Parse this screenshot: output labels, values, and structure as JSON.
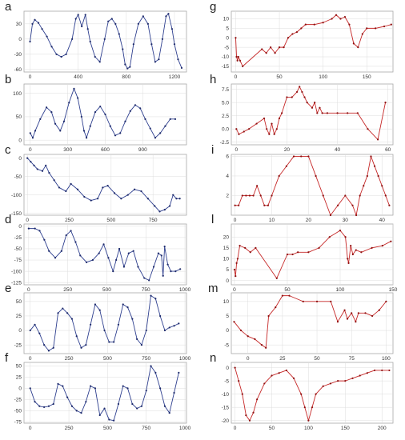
{
  "figure": {
    "background": "#ffffff"
  },
  "styles": {
    "blue_line": "#2e3f8f",
    "blue_marker": "#1d2a6b",
    "red_line": "#c62828",
    "red_marker": "#8e1010",
    "frame": "#a8a8a8",
    "grid": "#dcdcdc"
  },
  "chart_data": [
    {
      "panel": "a",
      "type": "line",
      "color": "blue",
      "grid": true,
      "xlim": [
        -50,
        1300
      ],
      "ylim": [
        -65,
        55
      ],
      "xticks": [
        "0",
        "400",
        "800",
        "1200"
      ],
      "xtick_values": [
        0,
        400,
        800,
        1200
      ],
      "yticks": [
        "30",
        "0",
        "-30",
        "-60"
      ],
      "ytick_values": [
        30,
        0,
        -30,
        -60
      ],
      "x": [
        0,
        20,
        40,
        70,
        100,
        140,
        180,
        220,
        260,
        300,
        350,
        380,
        400,
        430,
        460,
        480,
        500,
        540,
        580,
        620,
        650,
        680,
        710,
        740,
        770,
        790,
        810,
        830,
        860,
        900,
        940,
        980,
        1010,
        1040,
        1070,
        1100,
        1130,
        1150,
        1180,
        1200,
        1230,
        1260
      ],
      "y": [
        -5,
        30,
        38,
        32,
        20,
        5,
        -15,
        -30,
        -35,
        -30,
        0,
        40,
        48,
        25,
        48,
        20,
        -5,
        -35,
        -45,
        0,
        35,
        40,
        30,
        10,
        -20,
        -50,
        -58,
        -55,
        -10,
        30,
        45,
        30,
        -10,
        -45,
        -40,
        0,
        45,
        50,
        20,
        -10,
        -40,
        -57
      ]
    },
    {
      "panel": "b",
      "type": "line",
      "color": "blue",
      "grid": true,
      "xlim": [
        -50,
        1250
      ],
      "ylim": [
        -10,
        120
      ],
      "xticks": [
        "0",
        "300",
        "600",
        "900"
      ],
      "xtick_values": [
        0,
        300,
        600,
        900
      ],
      "yticks": [
        "100",
        "50",
        "0"
      ],
      "ytick_values": [
        100,
        50,
        0
      ],
      "x": [
        0,
        20,
        40,
        80,
        130,
        170,
        200,
        240,
        270,
        310,
        350,
        380,
        410,
        430,
        450,
        480,
        520,
        560,
        600,
        640,
        680,
        720,
        760,
        800,
        840,
        880,
        920,
        960,
        1000,
        1040,
        1080,
        1120,
        1160
      ],
      "y": [
        15,
        5,
        20,
        45,
        70,
        60,
        35,
        20,
        40,
        80,
        110,
        90,
        50,
        20,
        5,
        30,
        60,
        72,
        55,
        30,
        10,
        15,
        40,
        62,
        75,
        68,
        45,
        25,
        5,
        15,
        30,
        45,
        45
      ]
    },
    {
      "panel": "c",
      "type": "line",
      "color": "blue",
      "grid": true,
      "xlim": [
        -20,
        950
      ],
      "ylim": [
        -155,
        10
      ],
      "xticks": [
        "0",
        "250",
        "500",
        "750"
      ],
      "xtick_values": [
        0,
        250,
        500,
        750
      ],
      "yticks": [
        "0",
        "-50",
        "-100",
        "-150"
      ],
      "ytick_values": [
        0,
        -50,
        -100,
        -150
      ],
      "x": [
        0,
        20,
        40,
        60,
        90,
        110,
        130,
        160,
        190,
        230,
        260,
        300,
        340,
        380,
        420,
        450,
        480,
        520,
        560,
        600,
        640,
        680,
        720,
        760,
        790,
        820,
        850,
        870,
        890,
        910
      ],
      "y": [
        0,
        -10,
        -20,
        -30,
        -35,
        -20,
        -40,
        -60,
        -80,
        -90,
        -70,
        -85,
        -105,
        -115,
        -110,
        -80,
        -75,
        -95,
        -110,
        -100,
        -85,
        -90,
        -110,
        -130,
        -145,
        -140,
        -130,
        -100,
        -110,
        -110
      ]
    },
    {
      "panel": "d",
      "type": "line",
      "color": "blue",
      "grid": true,
      "xlim": [
        -30,
        1010
      ],
      "ylim": [
        -130,
        5
      ],
      "xticks": [
        "0",
        "250",
        "500",
        "750",
        "1000"
      ],
      "xtick_values": [
        0,
        250,
        500,
        750,
        1000
      ],
      "yticks": [
        "0",
        "-25",
        "-50",
        "-75",
        "-100",
        "-125"
      ],
      "ytick_values": [
        0,
        -25,
        -50,
        -75,
        -100,
        -125
      ],
      "x": [
        0,
        40,
        70,
        100,
        130,
        170,
        210,
        240,
        270,
        300,
        330,
        370,
        410,
        450,
        480,
        510,
        540,
        560,
        580,
        610,
        640,
        670,
        700,
        740,
        770,
        800,
        830,
        850,
        860,
        870,
        890,
        910,
        940,
        970
      ],
      "y": [
        -5,
        -5,
        -10,
        -30,
        -55,
        -70,
        -55,
        -20,
        -10,
        -35,
        -65,
        -80,
        -75,
        -60,
        -40,
        -70,
        -100,
        -75,
        -50,
        -90,
        -60,
        -55,
        -90,
        -115,
        -120,
        -90,
        -60,
        -65,
        -110,
        -45,
        -85,
        -100,
        -100,
        -95
      ]
    },
    {
      "panel": "e",
      "type": "line",
      "color": "blue",
      "grid": true,
      "xlim": [
        -40,
        1010
      ],
      "ylim": [
        -40,
        65
      ],
      "xticks": [
        "0",
        "250",
        "500",
        "750",
        "1000"
      ],
      "xtick_values": [
        0,
        250,
        500,
        750,
        1000
      ],
      "yticks": [
        "50",
        "25",
        "0",
        "-25"
      ],
      "ytick_values": [
        50,
        25,
        0,
        -25
      ],
      "x": [
        0,
        30,
        60,
        90,
        120,
        150,
        180,
        210,
        240,
        270,
        300,
        330,
        360,
        390,
        420,
        450,
        480,
        510,
        540,
        570,
        600,
        630,
        660,
        690,
        720,
        750,
        780,
        810,
        840,
        870,
        900,
        930,
        960
      ],
      "y": [
        0,
        10,
        -5,
        -25,
        -35,
        -30,
        30,
        38,
        30,
        20,
        -10,
        -30,
        -25,
        10,
        45,
        35,
        0,
        -20,
        -20,
        10,
        45,
        40,
        20,
        -15,
        -25,
        0,
        60,
        55,
        25,
        0,
        5,
        8,
        12
      ]
    },
    {
      "panel": "f",
      "type": "line",
      "color": "blue",
      "grid": true,
      "xlim": [
        -40,
        1010
      ],
      "ylim": [
        -78,
        58
      ],
      "xticks": [
        "0",
        "250",
        "500",
        "750",
        "1000"
      ],
      "xtick_values": [
        0,
        250,
        500,
        750,
        1000
      ],
      "yticks": [
        "50",
        "25",
        "0",
        "-25",
        "-50",
        "-75"
      ],
      "ytick_values": [
        50,
        25,
        0,
        -25,
        -50,
        -75
      ],
      "x": [
        0,
        30,
        60,
        90,
        120,
        150,
        180,
        210,
        240,
        270,
        300,
        330,
        360,
        390,
        420,
        450,
        480,
        510,
        540,
        570,
        600,
        630,
        660,
        690,
        720,
        750,
        780,
        810,
        840,
        870,
        900,
        930,
        960
      ],
      "y": [
        0,
        -30,
        -40,
        -42,
        -40,
        -35,
        10,
        5,
        -20,
        -40,
        -50,
        -55,
        -30,
        5,
        0,
        -60,
        -45,
        -70,
        -72,
        -35,
        5,
        0,
        -35,
        -45,
        -40,
        -5,
        50,
        35,
        0,
        -40,
        -55,
        -10,
        35
      ]
    },
    {
      "panel": "g",
      "type": "line",
      "color": "red",
      "grid": true,
      "xlim": [
        -5,
        180
      ],
      "ylim": [
        -18,
        14
      ],
      "xticks": [
        "0",
        "50",
        "100",
        "150"
      ],
      "xtick_values": [
        0,
        50,
        100,
        150
      ],
      "yticks": [
        "10",
        "5",
        "0",
        "-5",
        "-10",
        "-15"
      ],
      "ytick_values": [
        10,
        5,
        0,
        -5,
        -10,
        -15
      ],
      "x": [
        0,
        1,
        2,
        3,
        5,
        8,
        30,
        35,
        40,
        45,
        50,
        55,
        60,
        65,
        70,
        75,
        80,
        90,
        100,
        110,
        115,
        120,
        125,
        130,
        135,
        140,
        145,
        150,
        160,
        170,
        178
      ],
      "y": [
        0,
        -10,
        -12,
        -10,
        -12,
        -15,
        -6,
        -8,
        -5,
        -8,
        -5,
        -5,
        0,
        2,
        3,
        5,
        7,
        7,
        8,
        10,
        12,
        10,
        11,
        7,
        -3,
        -5,
        2,
        5,
        5,
        6,
        7
      ]
    },
    {
      "panel": "h",
      "type": "line",
      "color": "red",
      "grid": true,
      "xlim": [
        -2,
        62
      ],
      "ylim": [
        -3,
        8.5
      ],
      "xticks": [
        "0",
        "20",
        "40",
        "60"
      ],
      "xtick_values": [
        0,
        20,
        40,
        60
      ],
      "yticks": [
        "7.5",
        "5.0",
        "2.5",
        "0.0",
        "-2.5"
      ],
      "ytick_values": [
        7.5,
        5.0,
        2.5,
        0.0,
        -2.5
      ],
      "x": [
        0,
        1,
        3,
        5,
        8,
        11,
        12,
        13,
        14,
        15,
        16,
        17,
        18,
        20,
        22,
        24,
        25,
        26,
        27,
        28,
        30,
        31,
        32,
        33,
        34,
        36,
        40,
        44,
        48,
        52,
        56,
        59
      ],
      "y": [
        0,
        -1,
        -0.5,
        0,
        1,
        2,
        0,
        -1,
        1,
        -1,
        0,
        2,
        3,
        6,
        6,
        7,
        8,
        7,
        6,
        5,
        4,
        5,
        3,
        4,
        3,
        3,
        3,
        3,
        3,
        0,
        -2,
        5
      ]
    },
    {
      "panel": "i",
      "type": "line",
      "color": "red",
      "grid": true,
      "xlim": [
        -1,
        43
      ],
      "ylim": [
        0,
        6.2
      ],
      "xticks": [
        "0",
        "10",
        "20",
        "30",
        "40"
      ],
      "xtick_values": [
        0,
        10,
        20,
        30,
        40
      ],
      "yticks": [
        "6",
        "4",
        "2"
      ],
      "ytick_values": [
        6,
        4,
        2
      ],
      "x": [
        0,
        1,
        2,
        3,
        4,
        5,
        6,
        7,
        8,
        9,
        10,
        12,
        14,
        16,
        18,
        20,
        22,
        24,
        26,
        28,
        30,
        32,
        33,
        34,
        35,
        36,
        37,
        38,
        39,
        40,
        41,
        42
      ],
      "y": [
        1,
        1,
        2,
        2,
        2,
        2,
        3,
        2,
        1,
        1,
        2,
        4,
        5,
        6,
        6,
        6,
        4,
        2,
        0,
        1,
        2,
        1,
        0,
        2,
        3,
        4,
        6,
        5,
        4,
        3,
        2,
        1
      ]
    },
    {
      "panel": "l",
      "type": "line",
      "color": "red",
      "grid": true,
      "xlim": [
        -3,
        150
      ],
      "ylim": [
        -2,
        26
      ],
      "xticks": [
        "0",
        "50",
        "100",
        "150"
      ],
      "xtick_values": [
        0,
        50,
        100,
        150
      ],
      "yticks": [
        "20",
        "15",
        "10",
        "5",
        "0"
      ],
      "ytick_values": [
        20,
        15,
        10,
        5,
        0
      ],
      "x": [
        0,
        1,
        2,
        3,
        5,
        10,
        15,
        20,
        40,
        50,
        55,
        60,
        70,
        80,
        90,
        100,
        105,
        107,
        108,
        110,
        112,
        115,
        120,
        130,
        140,
        148
      ],
      "y": [
        5,
        2,
        8,
        10,
        16,
        15,
        13,
        15,
        1,
        12,
        12,
        13,
        13,
        15,
        20,
        23,
        20,
        10,
        8,
        16,
        12,
        14,
        13,
        15,
        16,
        18
      ]
    },
    {
      "panel": "m",
      "type": "line",
      "color": "red",
      "grid": true,
      "xlim": [
        -12,
        105
      ],
      "ylim": [
        -8,
        13
      ],
      "xticks": [
        "0",
        "25",
        "50",
        "75",
        "100"
      ],
      "xtick_values": [
        0,
        25,
        50,
        75,
        100
      ],
      "yticks": [
        "10",
        "5",
        "0",
        "-5"
      ],
      "ytick_values": [
        10,
        5,
        0,
        -5
      ],
      "x": [
        -10,
        -5,
        0,
        5,
        10,
        13,
        15,
        20,
        25,
        30,
        40,
        50,
        60,
        65,
        70,
        72,
        75,
        78,
        80,
        85,
        90,
        95,
        100
      ],
      "y": [
        3,
        0,
        -2,
        -3,
        -5,
        -6,
        5,
        8,
        12,
        12,
        10,
        10,
        10,
        3,
        7,
        4,
        6,
        3,
        6,
        6,
        5,
        7,
        10
      ]
    },
    {
      "panel": "n",
      "type": "line",
      "color": "red",
      "grid": true,
      "xlim": [
        -5,
        215
      ],
      "ylim": [
        -21,
        2
      ],
      "xticks": [
        "0",
        "50",
        "100",
        "150",
        "200"
      ],
      "xtick_values": [
        0,
        50,
        100,
        150,
        200
      ],
      "yticks": [
        "0",
        "-5",
        "-10",
        "-15",
        "-20"
      ],
      "ytick_values": [
        0,
        -5,
        -10,
        -15,
        -20
      ],
      "x": [
        0,
        5,
        10,
        15,
        20,
        25,
        30,
        40,
        50,
        60,
        70,
        80,
        90,
        95,
        100,
        105,
        110,
        120,
        130,
        140,
        150,
        160,
        170,
        180,
        190,
        200,
        210
      ],
      "y": [
        0,
        -5,
        -10,
        -18,
        -20,
        -17,
        -12,
        -6,
        -3,
        -2,
        -1,
        -4,
        -10,
        -15,
        -20,
        -15,
        -10,
        -7,
        -6,
        -5,
        -5,
        -4,
        -3,
        -2,
        -1,
        -1,
        -1
      ]
    }
  ]
}
